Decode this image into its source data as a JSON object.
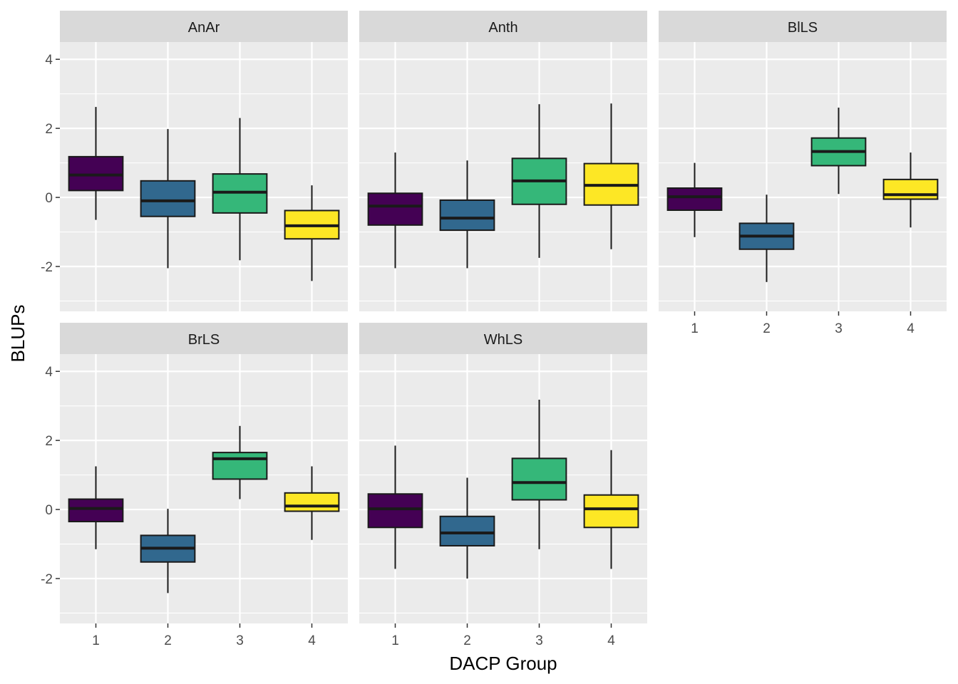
{
  "chart_data": {
    "type": "boxplot",
    "xlabel": "DACP Group",
    "ylabel": "BLUPs",
    "categories": [
      "1",
      "2",
      "3",
      "4"
    ],
    "ylim": [
      -3.3,
      4.5
    ],
    "yticks": [
      -2,
      0,
      2,
      4
    ],
    "ytick_labels": [
      "-2",
      "0",
      "2",
      "4"
    ],
    "colors": [
      "#440154",
      "#31688e",
      "#35b779",
      "#fde725"
    ],
    "panels": [
      {
        "name": "AnAr",
        "boxes": [
          {
            "group": "1",
            "whisker_low": -0.65,
            "q1": 0.2,
            "median": 0.65,
            "q3": 1.18,
            "whisker_high": 2.62
          },
          {
            "group": "2",
            "whisker_low": -2.05,
            "q1": -0.55,
            "median": -0.1,
            "q3": 0.48,
            "whisker_high": 1.98
          },
          {
            "group": "3",
            "whisker_low": -1.82,
            "q1": -0.45,
            "median": 0.15,
            "q3": 0.68,
            "whisker_high": 2.3
          },
          {
            "group": "4",
            "whisker_low": -2.42,
            "q1": -1.2,
            "median": -0.82,
            "q3": -0.38,
            "whisker_high": 0.35
          }
        ]
      },
      {
        "name": "Anth",
        "boxes": [
          {
            "group": "1",
            "whisker_low": -2.05,
            "q1": -0.8,
            "median": -0.25,
            "q3": 0.12,
            "whisker_high": 1.3
          },
          {
            "group": "2",
            "whisker_low": -2.05,
            "q1": -0.95,
            "median": -0.6,
            "q3": -0.08,
            "whisker_high": 1.07
          },
          {
            "group": "3",
            "whisker_low": -1.75,
            "q1": -0.2,
            "median": 0.48,
            "q3": 1.13,
            "whisker_high": 2.7
          },
          {
            "group": "4",
            "whisker_low": -1.5,
            "q1": -0.22,
            "median": 0.35,
            "q3": 0.98,
            "whisker_high": 2.72
          }
        ]
      },
      {
        "name": "BlLS",
        "boxes": [
          {
            "group": "1",
            "whisker_low": -1.15,
            "q1": -0.37,
            "median": 0.02,
            "q3": 0.27,
            "whisker_high": 1.0
          },
          {
            "group": "2",
            "whisker_low": -2.45,
            "q1": -1.5,
            "median": -1.12,
            "q3": -0.75,
            "whisker_high": 0.08
          },
          {
            "group": "3",
            "whisker_low": 0.1,
            "q1": 0.92,
            "median": 1.33,
            "q3": 1.72,
            "whisker_high": 2.6
          },
          {
            "group": "4",
            "whisker_low": -0.87,
            "q1": -0.05,
            "median": 0.08,
            "q3": 0.52,
            "whisker_high": 1.3
          }
        ]
      },
      {
        "name": "BrLS",
        "boxes": [
          {
            "group": "1",
            "whisker_low": -1.15,
            "q1": -0.35,
            "median": 0.03,
            "q3": 0.3,
            "whisker_high": 1.25
          },
          {
            "group": "2",
            "whisker_low": -2.42,
            "q1": -1.52,
            "median": -1.12,
            "q3": -0.75,
            "whisker_high": 0.02
          },
          {
            "group": "3",
            "whisker_low": 0.3,
            "q1": 0.88,
            "median": 1.47,
            "q3": 1.65,
            "whisker_high": 2.42
          },
          {
            "group": "4",
            "whisker_low": -0.88,
            "q1": -0.05,
            "median": 0.1,
            "q3": 0.48,
            "whisker_high": 1.25
          }
        ]
      },
      {
        "name": "WhLS",
        "boxes": [
          {
            "group": "1",
            "whisker_low": -1.72,
            "q1": -0.52,
            "median": 0.02,
            "q3": 0.45,
            "whisker_high": 1.85
          },
          {
            "group": "2",
            "whisker_low": -2.0,
            "q1": -1.05,
            "median": -0.68,
            "q3": -0.2,
            "whisker_high": 0.92
          },
          {
            "group": "3",
            "whisker_low": -1.15,
            "q1": 0.28,
            "median": 0.78,
            "q3": 1.48,
            "whisker_high": 3.18
          },
          {
            "group": "4",
            "whisker_low": -1.72,
            "q1": -0.52,
            "median": 0.02,
            "q3": 0.42,
            "whisker_high": 1.72
          }
        ]
      }
    ]
  }
}
